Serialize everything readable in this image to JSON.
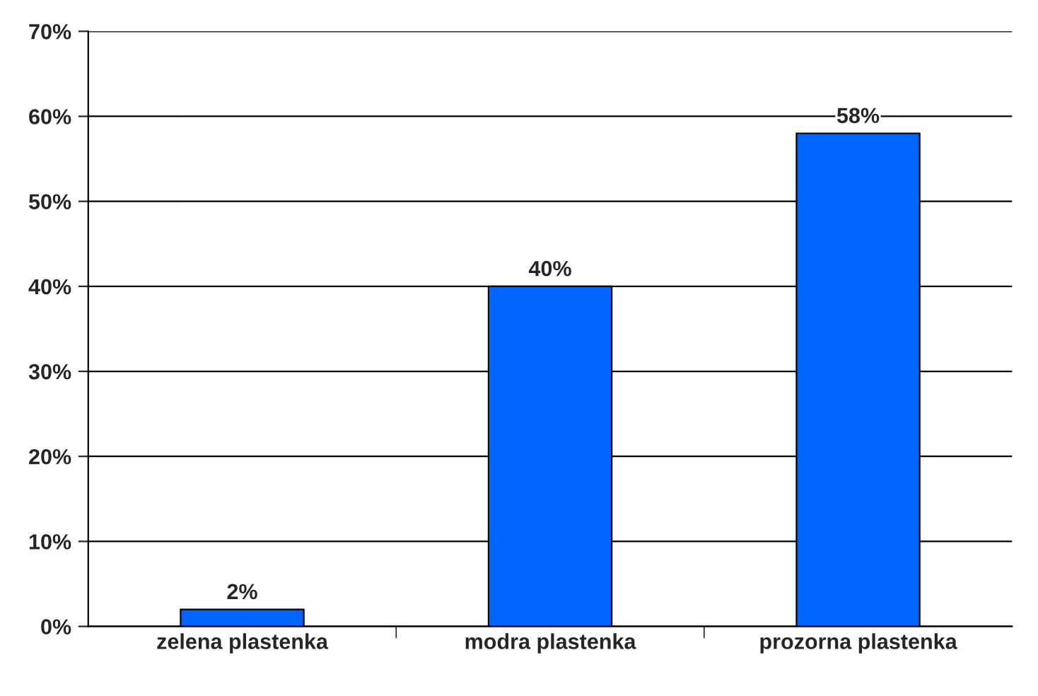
{
  "chart_data": {
    "type": "bar",
    "categories": [
      "zelena plastenka",
      "modra plastenka",
      "prozorna plastenka"
    ],
    "values": [
      2,
      40,
      58
    ],
    "value_labels": [
      "2%",
      "40%",
      "58%"
    ],
    "color": "#0066ff",
    "ylim": [
      0,
      70
    ],
    "yticks": [
      {
        "value": 0,
        "label": "0%"
      },
      {
        "value": 10,
        "label": "10%"
      },
      {
        "value": 20,
        "label": "20%"
      },
      {
        "value": 30,
        "label": "30%"
      },
      {
        "value": 40,
        "label": "40%"
      },
      {
        "value": 50,
        "label": "50%"
      },
      {
        "value": 60,
        "label": "60%"
      },
      {
        "value": 70,
        "label": "70%"
      }
    ],
    "grid": "y"
  }
}
